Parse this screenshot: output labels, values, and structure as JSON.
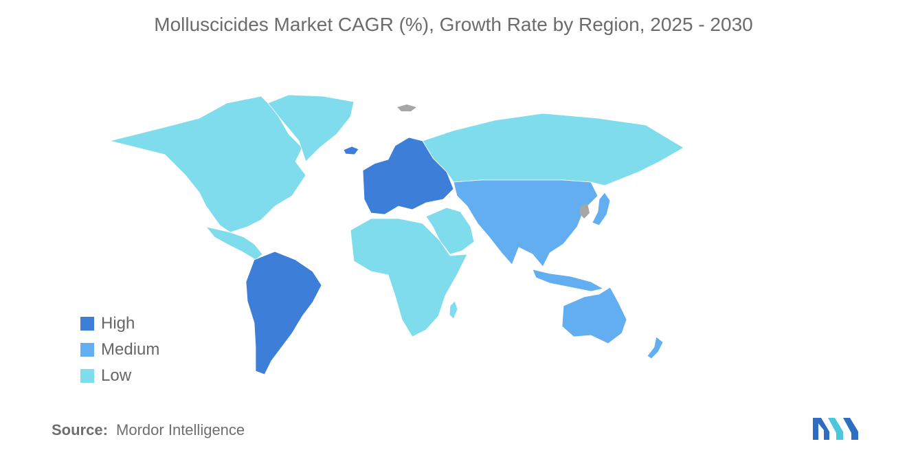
{
  "title": "Molluscicides Market CAGR (%), Growth Rate by Region, 2025 - 2030",
  "legend": [
    {
      "label": "High",
      "color": "#3d7ed8"
    },
    {
      "label": "Medium",
      "color": "#63aef0"
    },
    {
      "label": "Low",
      "color": "#7fdcec"
    }
  ],
  "no_data_color": "#a6a6a6",
  "regions": [
    {
      "name": "North America",
      "level": "Low"
    },
    {
      "name": "Greenland",
      "level": "Low"
    },
    {
      "name": "Central America",
      "level": "Low"
    },
    {
      "name": "South America",
      "level": "High"
    },
    {
      "name": "Europe",
      "level": "High"
    },
    {
      "name": "Russia",
      "level": "Low"
    },
    {
      "name": "Middle East",
      "level": "Low"
    },
    {
      "name": "Africa",
      "level": "Low"
    },
    {
      "name": "Asia-Pacific",
      "level": "Medium"
    },
    {
      "name": "Australia",
      "level": "Medium"
    },
    {
      "name": "New Zealand",
      "level": "Medium"
    }
  ],
  "source": {
    "label": "Source:",
    "text": "Mordor Intelligence"
  },
  "logo": {
    "icon": "mordor-intelligence-logo-icon"
  }
}
